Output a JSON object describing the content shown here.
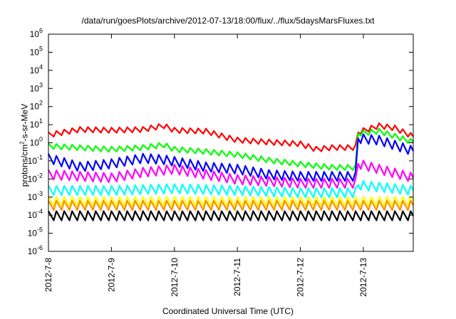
{
  "chart_data": {
    "type": "line",
    "title": "/data/run/goesPlots/archive/2012-07-13/18:00/flux/../flux/5daysMarsFluxes.txt",
    "xlabel": "Coordinated Universal Time (UTC)",
    "ylabel": {
      "prefix": "protons/cm",
      "sup": "2",
      "suffix": "-s-sr-MeV"
    },
    "yscale": "log",
    "ylim": [
      1e-06,
      1000000.0
    ],
    "xlim": [
      "2012-07-08 00:00",
      "2012-07-13 19:00"
    ],
    "grid": false,
    "legend": "none",
    "x_ticks": [
      "2012-7-8",
      "2012-7-9",
      "2012-7-10",
      "2012-7-11",
      "2012-7-12",
      "2012-7-13"
    ],
    "y_ticks": [
      {
        "base": "10",
        "exp": "-6"
      },
      {
        "base": "10",
        "exp": "-5"
      },
      {
        "base": "10",
        "exp": "-4"
      },
      {
        "base": "10",
        "exp": "-3"
      },
      {
        "base": "10",
        "exp": "-2"
      },
      {
        "base": "10",
        "exp": "-1"
      },
      {
        "base": "10",
        "exp": "0"
      },
      {
        "base": "10",
        "exp": "1"
      },
      {
        "base": "10",
        "exp": "2"
      },
      {
        "base": "10",
        "exp": "3"
      },
      {
        "base": "10",
        "exp": "4"
      },
      {
        "base": "10",
        "exp": "5"
      },
      {
        "base": "10",
        "exp": "6"
      }
    ],
    "series": [
      {
        "color": "#ff0000",
        "points": [
          [
            "2012-07-08 00:00",
            2.5
          ],
          [
            "2012-07-08 12:00",
            5
          ],
          [
            "2012-07-09 00:00",
            4.5
          ],
          [
            "2012-07-09 12:00",
            5
          ],
          [
            "2012-07-09 20:00",
            8
          ],
          [
            "2012-07-10 00:00",
            4.5
          ],
          [
            "2012-07-10 12:00",
            4
          ],
          [
            "2012-07-10 20:00",
            1.8
          ],
          [
            "2012-07-11 00:00",
            1.3
          ],
          [
            "2012-07-11 12:00",
            1.0
          ],
          [
            "2012-07-12 00:00",
            0.8
          ],
          [
            "2012-07-12 06:00",
            0.4
          ],
          [
            "2012-07-12 12:00",
            0.5
          ],
          [
            "2012-07-12 21:00",
            0.5
          ],
          [
            "2012-07-12 22:00",
            3.5
          ],
          [
            "2012-07-13 06:00",
            8
          ],
          [
            "2012-07-13 12:00",
            6
          ],
          [
            "2012-07-13 19:00",
            2
          ]
        ]
      },
      {
        "color": "#00ff00",
        "points": [
          [
            "2012-07-08 00:00",
            0.6
          ],
          [
            "2012-07-09 00:00",
            0.4
          ],
          [
            "2012-07-09 12:00",
            0.5
          ],
          [
            "2012-07-09 20:00",
            0.7
          ],
          [
            "2012-07-10 00:00",
            0.4
          ],
          [
            "2012-07-10 12:00",
            0.3
          ],
          [
            "2012-07-11 00:00",
            0.2
          ],
          [
            "2012-07-11 12:00",
            0.1
          ],
          [
            "2012-07-12 00:00",
            0.06
          ],
          [
            "2012-07-12 12:00",
            0.04
          ],
          [
            "2012-07-12 21:00",
            0.04
          ],
          [
            "2012-07-12 22:00",
            3
          ],
          [
            "2012-07-13 06:00",
            4
          ],
          [
            "2012-07-13 19:00",
            1
          ]
        ]
      },
      {
        "color": "#0000ff",
        "points": [
          [
            "2012-07-08 00:00",
            0.12
          ],
          [
            "2012-07-08 12:00",
            0.04
          ],
          [
            "2012-07-09 00:00",
            0.06
          ],
          [
            "2012-07-09 12:00",
            0.12
          ],
          [
            "2012-07-09 20:00",
            0.1
          ],
          [
            "2012-07-10 00:00",
            0.08
          ],
          [
            "2012-07-10 12:00",
            0.04
          ],
          [
            "2012-07-11 00:00",
            0.03
          ],
          [
            "2012-07-11 12:00",
            0.015
          ],
          [
            "2012-07-12 00:00",
            0.012
          ],
          [
            "2012-07-12 21:00",
            0.012
          ],
          [
            "2012-07-12 22:00",
            1.5
          ],
          [
            "2012-07-13 06:00",
            1.2
          ],
          [
            "2012-07-13 19:00",
            0.3
          ]
        ]
      },
      {
        "color": "#ff00ff",
        "points": [
          [
            "2012-07-08 00:00",
            0.015
          ],
          [
            "2012-07-09 00:00",
            0.01
          ],
          [
            "2012-07-09 12:00",
            0.02
          ],
          [
            "2012-07-10 00:00",
            0.03
          ],
          [
            "2012-07-10 12:00",
            0.015
          ],
          [
            "2012-07-11 00:00",
            0.008
          ],
          [
            "2012-07-12 00:00",
            0.005
          ],
          [
            "2012-07-12 21:00",
            0.005
          ],
          [
            "2012-07-12 22:00",
            0.06
          ],
          [
            "2012-07-13 06:00",
            0.03
          ],
          [
            "2012-07-13 19:00",
            0.01
          ]
        ]
      },
      {
        "color": "#00ffff",
        "points": [
          [
            "2012-07-08 00:00",
            0.002
          ],
          [
            "2012-07-09 00:00",
            0.002
          ],
          [
            "2012-07-10 00:00",
            0.0025
          ],
          [
            "2012-07-11 00:00",
            0.002
          ],
          [
            "2012-07-12 00:00",
            0.0015
          ],
          [
            "2012-07-12 21:00",
            0.0015
          ],
          [
            "2012-07-12 22:00",
            0.004
          ],
          [
            "2012-07-13 19:00",
            0.002
          ]
        ]
      },
      {
        "color": "#ffff00",
        "points": [
          [
            "2012-07-08 00:00",
            0.0005
          ],
          [
            "2012-07-13 19:00",
            0.0005
          ]
        ]
      },
      {
        "color": "#ff8c00",
        "points": [
          [
            "2012-07-08 00:00",
            0.0003
          ],
          [
            "2012-07-13 19:00",
            0.0003
          ]
        ]
      },
      {
        "color": "#000000",
        "points": [
          [
            "2012-07-08 00:00",
            8e-05
          ],
          [
            "2012-07-13 19:00",
            8e-05
          ]
        ]
      }
    ]
  }
}
